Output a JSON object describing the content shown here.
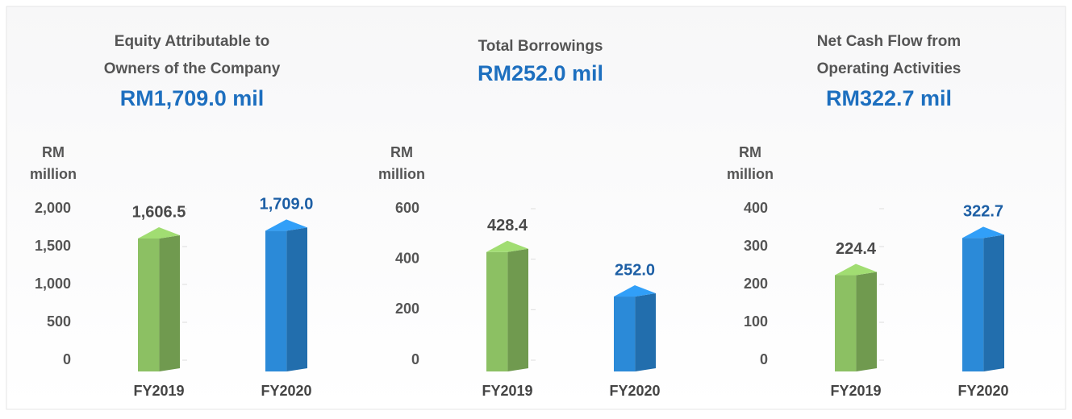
{
  "chart_data": [
    {
      "type": "bar",
      "title": [
        "Equity Attributable to",
        "Owners of the Company"
      ],
      "subtitle": "RM1,709.0 mil",
      "ylabel": [
        "RM",
        "million"
      ],
      "categories": [
        "FY2019",
        "FY2020"
      ],
      "values": [
        1606.5,
        1709.0
      ],
      "value_labels": [
        "1,606.5",
        "1,709.0"
      ],
      "colors": [
        "#8cc063",
        "#2b8ad8"
      ],
      "ylim": [
        0,
        2000
      ],
      "yticks": [
        0,
        500,
        {
          "value": 1000,
          "label": "1,000"
        },
        {
          "value": 1500,
          "label": "1,500"
        },
        {
          "value": 2000,
          "label": "2,000"
        }
      ]
    },
    {
      "type": "bar",
      "title": [
        "Total Borrowings"
      ],
      "subtitle": "RM252.0 mil",
      "ylabel": [
        "RM",
        "million"
      ],
      "categories": [
        "FY2019",
        "FY2020"
      ],
      "values": [
        428.4,
        252.0
      ],
      "value_labels": [
        "428.4",
        "252.0"
      ],
      "colors": [
        "#8cc063",
        "#2b8ad8"
      ],
      "ylim": [
        0,
        600
      ],
      "yticks": [
        0,
        200,
        400,
        600
      ]
    },
    {
      "type": "bar",
      "title": [
        "Net Cash Flow from",
        "Operating Activities"
      ],
      "subtitle": "RM322.7 mil",
      "ylabel": [
        "RM",
        "million"
      ],
      "categories": [
        "FY2019",
        "FY2020"
      ],
      "values": [
        224.4,
        322.7
      ],
      "value_labels": [
        "224.4",
        "322.7"
      ],
      "colors": [
        "#8cc063",
        "#2b8ad8"
      ],
      "ylim": [
        0,
        400
      ],
      "yticks": [
        0,
        100,
        200,
        300,
        400
      ]
    }
  ]
}
